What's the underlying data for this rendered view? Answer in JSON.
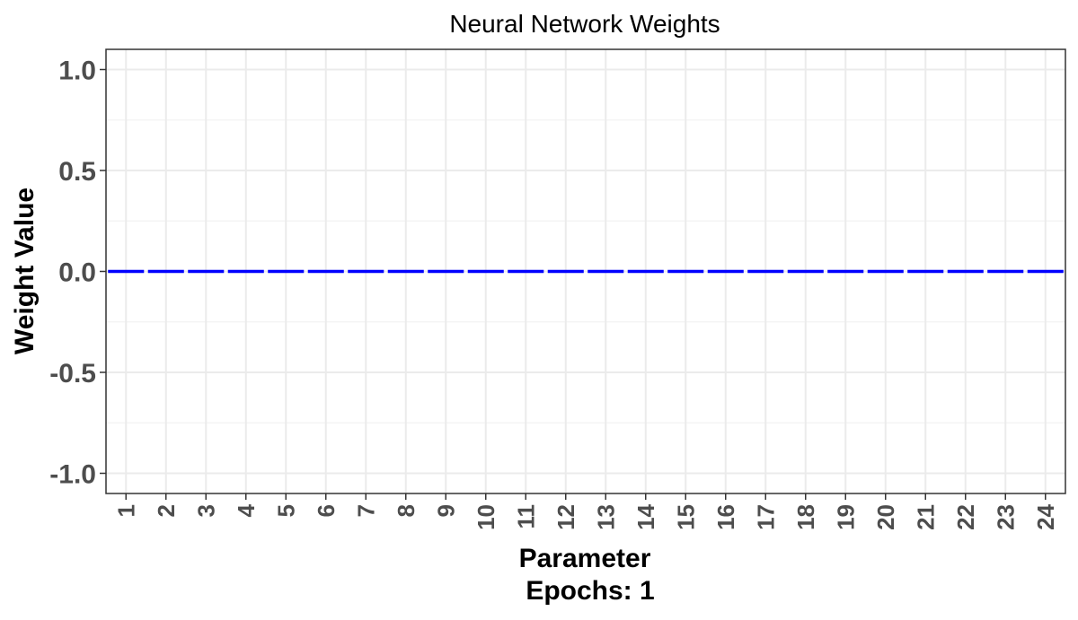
{
  "chart_data": {
    "type": "bar",
    "title": "Neural Network Weights",
    "xlabel": "Parameter",
    "ylabel": "Weight Value",
    "caption": "Epochs: 1",
    "categories": [
      "1",
      "2",
      "3",
      "4",
      "5",
      "6",
      "7",
      "8",
      "9",
      "10",
      "11",
      "12",
      "13",
      "14",
      "15",
      "16",
      "17",
      "18",
      "19",
      "20",
      "21",
      "22",
      "23",
      "24"
    ],
    "values": [
      0,
      0,
      0,
      0,
      0,
      0,
      0,
      0,
      0,
      0,
      0,
      0,
      0,
      0,
      0,
      0,
      0,
      0,
      0,
      0,
      0,
      0,
      0,
      0
    ],
    "ylim": [
      -1.1,
      1.1
    ],
    "yticks": [
      "-1.0",
      "-0.5",
      "0.0",
      "0.5",
      "1.0"
    ],
    "grid": true,
    "bar_color": "#0000ff"
  }
}
